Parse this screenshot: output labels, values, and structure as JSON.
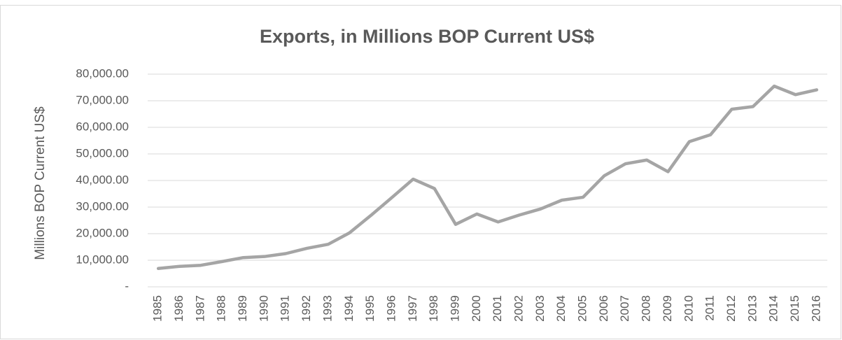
{
  "chart_data": {
    "type": "line",
    "title": "Exports, in Millions BOP Current US$",
    "y_label": "Millions BOP Current US$",
    "categories": [
      "1985",
      "1986",
      "1987",
      "1988",
      "1989",
      "1990",
      "1991",
      "1992",
      "1993",
      "1994",
      "1995",
      "1996",
      "1997",
      "1998",
      "1999",
      "2000",
      "2001",
      "2002",
      "2003",
      "2004",
      "2005",
      "2006",
      "2007",
      "2008",
      "2009",
      "2010",
      "2011",
      "2012",
      "2013",
      "2014",
      "2015",
      "2016"
    ],
    "values": [
      6900,
      7700,
      8100,
      9500,
      11000,
      11400,
      12500,
      14500,
      16000,
      20300,
      26800,
      33600,
      40500,
      37000,
      23500,
      27400,
      24400,
      27000,
      29300,
      32600,
      33700,
      41800,
      46300,
      47700,
      43300,
      54600,
      57200,
      66800,
      67800,
      75500,
      72300,
      74100
    ],
    "color": "#a5a5a5",
    "ylim": [
      0,
      80000
    ],
    "yticks": [
      {
        "value": 0,
        "label": "-"
      },
      {
        "value": 10000,
        "label": "10,000.00"
      },
      {
        "value": 20000,
        "label": "20,000.00"
      },
      {
        "value": 30000,
        "label": "30,000.00"
      },
      {
        "value": 40000,
        "label": "40,000.00"
      },
      {
        "value": 50000,
        "label": "50,000.00"
      },
      {
        "value": 60000,
        "label": "60,000.00"
      },
      {
        "value": 70000,
        "label": "70,000.00"
      },
      {
        "value": 80000,
        "label": "80,000.00"
      }
    ],
    "grid": true
  }
}
